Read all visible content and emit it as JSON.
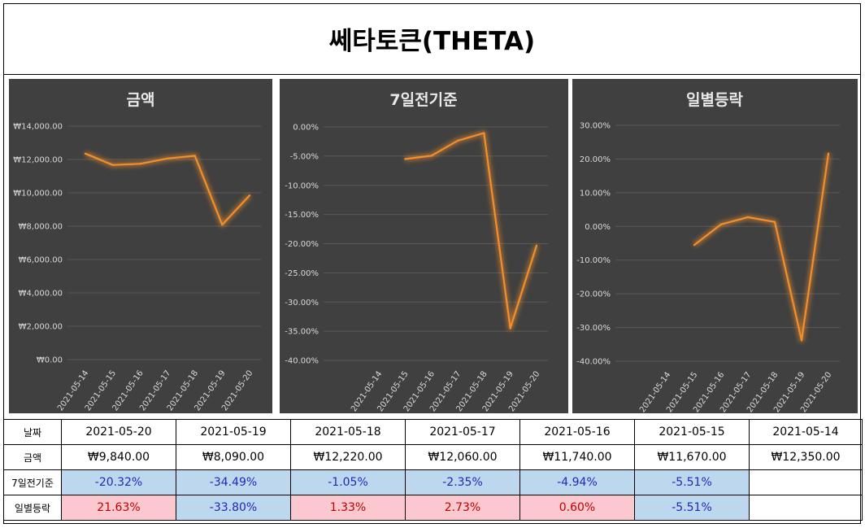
{
  "title": "쎄타토큰(THETA)",
  "charts_style": {
    "line_color": "#f28e2b",
    "background": "#404040",
    "title_color": "#e8e8e8",
    "tick_color": "#d9d9d9",
    "grid_color": "#595959"
  },
  "chart_data": [
    {
      "type": "line",
      "title": "금액",
      "categories": [
        "2021-05-14",
        "2021-05-15",
        "2021-05-16",
        "2021-05-17",
        "2021-05-18",
        "2021-05-19",
        "2021-05-20"
      ],
      "values": [
        12350,
        11670,
        11740,
        12060,
        12220,
        8090,
        9840
      ],
      "ylim": [
        0,
        14000
      ],
      "yticks": [
        14000,
        12000,
        10000,
        8000,
        6000,
        4000,
        2000,
        0
      ],
      "ytick_labels": [
        "₩14,000.00",
        "₩12,000.00",
        "₩10,000.00",
        "₩8,000.00",
        "₩6,000.00",
        "₩4,000.00",
        "₩2,000.00",
        "₩0.00"
      ]
    },
    {
      "type": "line",
      "title": "7일전기준",
      "categories": [
        "2021-05-14",
        "2021-05-15",
        "2021-05-16",
        "2021-05-17",
        "2021-05-18",
        "2021-05-19",
        "2021-05-20"
      ],
      "values": [
        null,
        -5.51,
        -4.94,
        -2.35,
        -1.05,
        -34.49,
        -20.32
      ],
      "ylim": [
        -40,
        0
      ],
      "yticks": [
        0,
        -5,
        -10,
        -15,
        -20,
        -25,
        -30,
        -35,
        -40
      ],
      "ytick_labels": [
        "0.00%",
        "-5.00%",
        "-10.00%",
        "-15.00%",
        "-20.00%",
        "-25.00%",
        "-30.00%",
        "-35.00%",
        "-40.00%"
      ]
    },
    {
      "type": "line",
      "title": "일별등락",
      "categories": [
        "2021-05-14",
        "2021-05-15",
        "2021-05-16",
        "2021-05-17",
        "2021-05-18",
        "2021-05-19",
        "2021-05-20"
      ],
      "values": [
        null,
        -5.51,
        0.6,
        2.73,
        1.33,
        -33.8,
        21.63
      ],
      "ylim": [
        -40,
        30
      ],
      "yticks": [
        30,
        20,
        10,
        0,
        -10,
        -20,
        -30,
        -40
      ],
      "ytick_labels": [
        "30.00%",
        "20.00%",
        "10.00%",
        "0.00%",
        "-10.00%",
        "-20.00%",
        "-30.00%",
        "-40.00%"
      ]
    }
  ],
  "table": {
    "row_labels": {
      "date": "날짜",
      "price": "금액",
      "seven_day": "7일전기준",
      "daily": "일별등락"
    },
    "dates": [
      "2021-05-20",
      "2021-05-19",
      "2021-05-18",
      "2021-05-17",
      "2021-05-16",
      "2021-05-15",
      "2021-05-14"
    ],
    "prices": [
      "₩9,840.00",
      "₩8,090.00",
      "₩12,220.00",
      "₩12,060.00",
      "₩11,740.00",
      "₩11,670.00",
      "₩12,350.00"
    ],
    "seven_day": [
      "-20.32%",
      "-34.49%",
      "-1.05%",
      "-2.35%",
      "-4.94%",
      "-5.51%",
      ""
    ],
    "seven_day_tone": [
      "blue",
      "blue",
      "blue",
      "blue",
      "blue",
      "blue",
      ""
    ],
    "daily": [
      "21.63%",
      "-33.80%",
      "1.33%",
      "2.73%",
      "0.60%",
      "-5.51%",
      ""
    ],
    "daily_tone": [
      "pink",
      "blue",
      "pink",
      "pink",
      "pink",
      "blue",
      ""
    ]
  }
}
